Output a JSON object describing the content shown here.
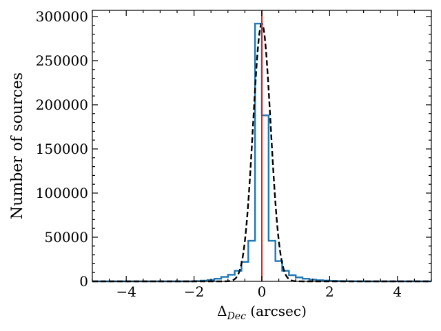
{
  "chart_data": {
    "type": "histogram",
    "xlabel_main": "Δ",
    "xlabel_sub": "Dec",
    "xlabel_unit": " (arcsec)",
    "ylabel": "Number of sources",
    "xlim": [
      -5,
      5
    ],
    "ylim": [
      0,
      307000
    ],
    "xticks": [
      -4,
      -2,
      0,
      2,
      4
    ],
    "xtick_labels": [
      "−4",
      "−2",
      "0",
      "2",
      "4"
    ],
    "yticks": [
      0,
      50000,
      100000,
      150000,
      200000,
      250000,
      300000
    ],
    "ytick_labels": [
      "0",
      "50000",
      "100000",
      "150000",
      "200000",
      "250000",
      "300000"
    ],
    "grid": false,
    "histogram": {
      "name": "",
      "color": "#1f77b4",
      "bin_edges": [
        -5.0,
        -4.8,
        -4.6,
        -4.4,
        -4.2,
        -4.0,
        -3.8,
        -3.6,
        -3.4,
        -3.2,
        -3.0,
        -2.8,
        -2.6,
        -2.4,
        -2.2,
        -2.0,
        -1.8,
        -1.6,
        -1.4,
        -1.2,
        -1.0,
        -0.8,
        -0.6,
        -0.4,
        -0.2,
        0.0,
        0.2,
        0.4,
        0.6,
        0.8,
        1.0,
        1.2,
        1.4,
        1.6,
        1.8,
        2.0,
        2.2,
        2.4,
        2.6,
        2.8,
        3.0,
        3.2,
        3.4,
        3.6,
        3.8,
        4.0,
        4.2,
        4.4,
        4.6,
        4.8,
        5.0
      ],
      "counts": [
        0,
        0,
        0,
        0,
        0,
        0,
        0,
        0,
        0,
        0,
        0,
        0,
        0,
        0,
        0,
        300,
        800,
        1500,
        3000,
        5000,
        7500,
        12000,
        22000,
        46000,
        292000,
        188000,
        46000,
        23000,
        12000,
        7000,
        4500,
        3000,
        2000,
        1300,
        900,
        500,
        300,
        200,
        100,
        50,
        0,
        0,
        0,
        0,
        0,
        0,
        0,
        0,
        0,
        0
      ]
    },
    "gaussian_fit": {
      "name": "",
      "color": "#000000",
      "style": "dashed",
      "mean": 0.0,
      "sigma": 0.26,
      "amplitude": 292000
    },
    "center_line": {
      "x": 0,
      "color": "#d62728"
    }
  }
}
